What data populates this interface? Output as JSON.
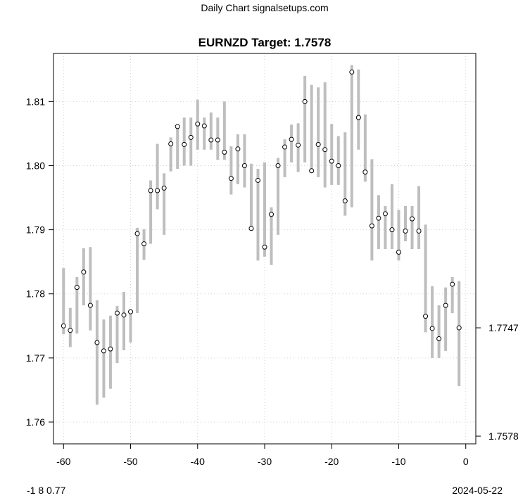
{
  "header": {
    "site_title": "Daily Chart signalsetups.com"
  },
  "footer": {
    "left_text": "-1 8 0.77",
    "right_text": "2024-05-22"
  },
  "colors": {
    "bar": "#bebebe",
    "grid": "#d3d3d3",
    "axis": "#000000",
    "point_fill": "#ffffff",
    "point_stroke": "#000000"
  },
  "chart_data": {
    "type": "scatter",
    "title": "EURNZD Target: 1.7578",
    "xlabel": "",
    "ylabel": "",
    "xlim": [
      -61.5,
      1.5
    ],
    "ylim": [
      1.7566,
      1.8175
    ],
    "grid": true,
    "x_ticks": [
      -60,
      -50,
      -40,
      -30,
      -20,
      -10,
      0
    ],
    "x_tick_labels": [
      "-60",
      "-50",
      "-40",
      "-30",
      "-20",
      "-10",
      "0"
    ],
    "y_ticks": [
      1.76,
      1.77,
      1.78,
      1.79,
      1.8,
      1.81
    ],
    "y_tick_labels": [
      "1.76",
      "1.77",
      "1.78",
      "1.79",
      "1.80",
      "1.81"
    ],
    "right_ticks": [
      1.7747,
      1.7578
    ],
    "right_tick_labels": [
      "1.7747",
      "1.7578"
    ],
    "series": [
      {
        "x": [
          -60,
          -59,
          -58,
          -57,
          -56,
          -55,
          -54,
          -53,
          -52,
          -51,
          -50,
          -49,
          -48,
          -47,
          -46,
          -45,
          -44,
          -43,
          -42,
          -41,
          -40,
          -39,
          -38,
          -37,
          -36,
          -35,
          -34,
          -33,
          -32,
          -31,
          -30,
          -29,
          -28,
          -27,
          -26,
          -25,
          -24,
          -23,
          -22,
          -21,
          -20,
          -19,
          -18,
          -17,
          -16,
          -15,
          -14,
          -13,
          -12,
          -11,
          -10,
          -9,
          -8,
          -7,
          -6,
          -5,
          -4,
          -3,
          -2,
          -1
        ],
        "y": [
          1.775,
          1.7743,
          1.781,
          1.7834,
          1.7782,
          1.7724,
          1.7711,
          1.7714,
          1.777,
          1.7767,
          1.7772,
          1.7894,
          1.7878,
          1.7961,
          1.7961,
          1.7965,
          1.8034,
          1.8061,
          1.8033,
          1.8044,
          1.8065,
          1.8062,
          1.804,
          1.804,
          1.8021,
          1.798,
          1.8026,
          1.8,
          1.7902,
          1.7977,
          1.7873,
          1.7924,
          1.8,
          1.8029,
          1.8041,
          1.8032,
          1.81,
          1.7992,
          1.8033,
          1.8025,
          1.8007,
          1.8,
          1.7945,
          1.8146,
          1.8075,
          1.799,
          1.7906,
          1.7918,
          1.7925,
          1.79,
          1.7865,
          1.7898,
          1.7917,
          1.7898,
          1.7765,
          1.7746,
          1.773,
          1.7782,
          1.7815,
          1.7747
        ],
        "low": [
          1.7737,
          1.7717,
          1.7738,
          1.7782,
          1.7743,
          1.7627,
          1.7638,
          1.7652,
          1.7692,
          1.7712,
          1.7724,
          1.777,
          1.7853,
          1.7878,
          1.7932,
          1.7892,
          1.7991,
          1.7995,
          1.8,
          1.8,
          1.8025,
          1.8025,
          1.8025,
          1.8009,
          1.8009,
          1.7955,
          1.7971,
          1.7966,
          1.7902,
          1.7852,
          1.7858,
          1.7845,
          1.7892,
          1.7982,
          1.8005,
          1.799,
          1.8005,
          1.799,
          1.7982,
          1.7966,
          1.797,
          1.797,
          1.7922,
          1.7935,
          1.8025,
          1.7975,
          1.7852,
          1.787,
          1.787,
          1.787,
          1.7852,
          1.7882,
          1.787,
          1.787,
          1.774,
          1.77,
          1.77,
          1.7711,
          1.777,
          1.7656
        ],
        "high": [
          1.784,
          1.7778,
          1.7826,
          1.7871,
          1.7873,
          1.779,
          1.776,
          1.7766,
          1.7781,
          1.7803,
          1.7774,
          1.7903,
          1.7901,
          1.7977,
          1.8034,
          1.7988,
          1.8044,
          1.8063,
          1.8075,
          1.8075,
          1.8103,
          1.8075,
          1.8083,
          1.8075,
          1.81,
          1.803,
          1.8049,
          1.8049,
          1.8003,
          1.7995,
          1.8005,
          1.7935,
          1.8012,
          1.8041,
          1.8064,
          1.8066,
          1.814,
          1.8126,
          1.8122,
          1.813,
          1.8065,
          1.8046,
          1.8052,
          1.8157,
          1.815,
          1.808,
          1.801,
          1.7954,
          1.7937,
          1.7971,
          1.7931,
          1.7937,
          1.7937,
          1.7968,
          1.7908,
          1.7812,
          1.7782,
          1.781,
          1.7826,
          1.782
        ]
      }
    ]
  }
}
